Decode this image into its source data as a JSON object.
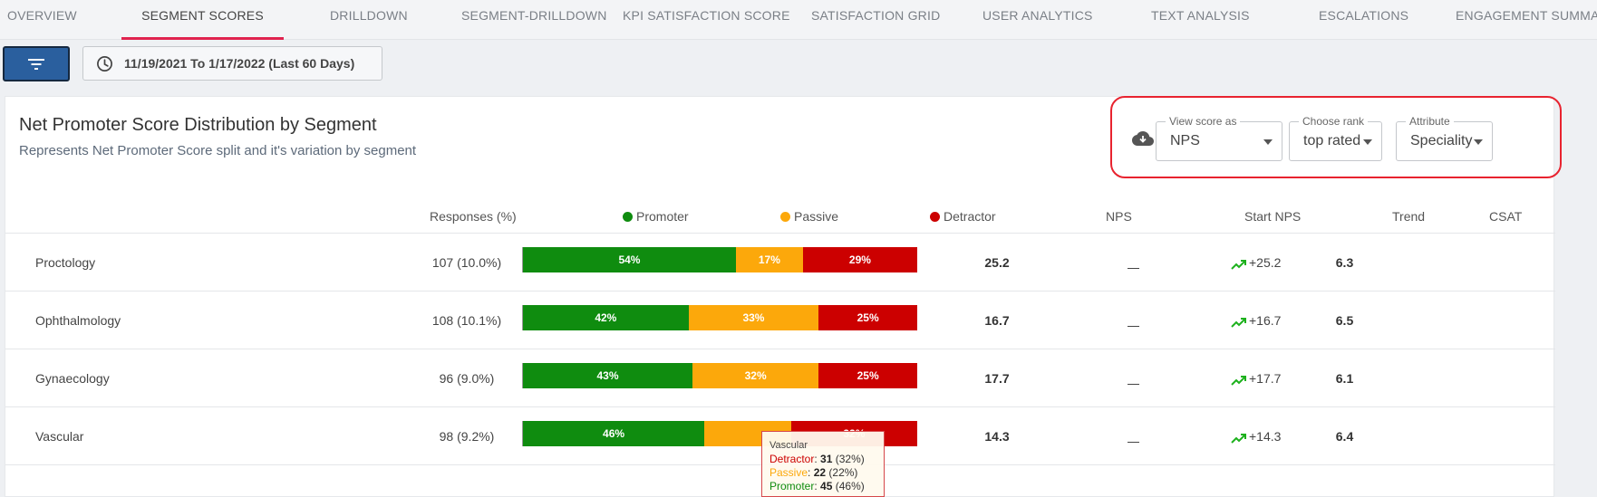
{
  "tabs": [
    {
      "label": "OVERVIEW"
    },
    {
      "label": "SEGMENT SCORES",
      "active": true
    },
    {
      "label": "DRILLDOWN"
    },
    {
      "label": "SEGMENT-DRILLDOWN"
    },
    {
      "label": "KPI SATISFACTION SCORE"
    },
    {
      "label": "SATISFACTION GRID"
    },
    {
      "label": "USER ANALYTICS"
    },
    {
      "label": "TEXT ANALYSIS"
    },
    {
      "label": "ESCALATIONS"
    },
    {
      "label": "ENGAGEMENT SUMMAR"
    }
  ],
  "toolbar": {
    "filter_icon": "filter-icon",
    "date_icon": "clock-icon",
    "date_range": "11/19/2021 To 1/17/2022 (Last 60 Days)"
  },
  "card": {
    "title": "Net Promoter Score Distribution by Segment",
    "subtitle": "Represents Net Promoter Score split and it's variation by segment",
    "download_icon": "cloud-download-icon",
    "controls": [
      {
        "label": "View score as",
        "value": "NPS"
      },
      {
        "label": "Choose rank",
        "value": "top rated"
      },
      {
        "label": "Attribute",
        "value": "Speciality"
      }
    ]
  },
  "table": {
    "headers": {
      "responses": "Responses (%)",
      "promoter": "Promoter",
      "passive": "Passive",
      "detractor": "Detractor",
      "nps": "NPS",
      "start_nps": "Start NPS",
      "trend": "Trend",
      "csat": "CSAT"
    },
    "colors": {
      "promoter": "#0f8c0f",
      "passive": "#fca80b",
      "detractor": "#cc0000",
      "trend": "#1db11d"
    },
    "rows": [
      {
        "name": "Proctology",
        "responses": "107 (10.0%)",
        "promoter": 54,
        "passive": 17,
        "detractor": 29,
        "promoter_label": "54%",
        "passive_label": "17%",
        "detractor_label": "29%",
        "nps": "25.2",
        "start_nps": "",
        "trend": "+25.2",
        "csat": "6.3"
      },
      {
        "name": "Ophthalmology",
        "responses": "108 (10.1%)",
        "promoter": 42,
        "passive": 33,
        "detractor": 25,
        "promoter_label": "42%",
        "passive_label": "33%",
        "detractor_label": "25%",
        "nps": "16.7",
        "start_nps": "",
        "trend": "+16.7",
        "csat": "6.5"
      },
      {
        "name": "Gynaecology",
        "responses": "96 (9.0%)",
        "promoter": 43,
        "passive": 32,
        "detractor": 25,
        "promoter_label": "43%",
        "passive_label": "32%",
        "detractor_label": "25%",
        "nps": "17.7",
        "start_nps": "",
        "trend": "+17.7",
        "csat": "6.1"
      },
      {
        "name": "Vascular",
        "responses": "98 (9.2%)",
        "promoter": 46,
        "passive": 22,
        "detractor": 32,
        "promoter_label": "46%",
        "passive_label": "",
        "detractor_label": "32%",
        "nps": "14.3",
        "start_nps": "",
        "trend": "+14.3",
        "csat": "6.4"
      }
    ]
  },
  "tooltip": {
    "title": "Vascular",
    "items": [
      {
        "key": "Detractor",
        "count": "31",
        "pct": "(32%)",
        "color": "#cc0000"
      },
      {
        "key": "Passive",
        "count": "22",
        "pct": "(22%)",
        "color": "#fca80b"
      },
      {
        "key": "Promoter",
        "count": "45",
        "pct": "(46%)",
        "color": "#0f8c0f"
      }
    ]
  }
}
